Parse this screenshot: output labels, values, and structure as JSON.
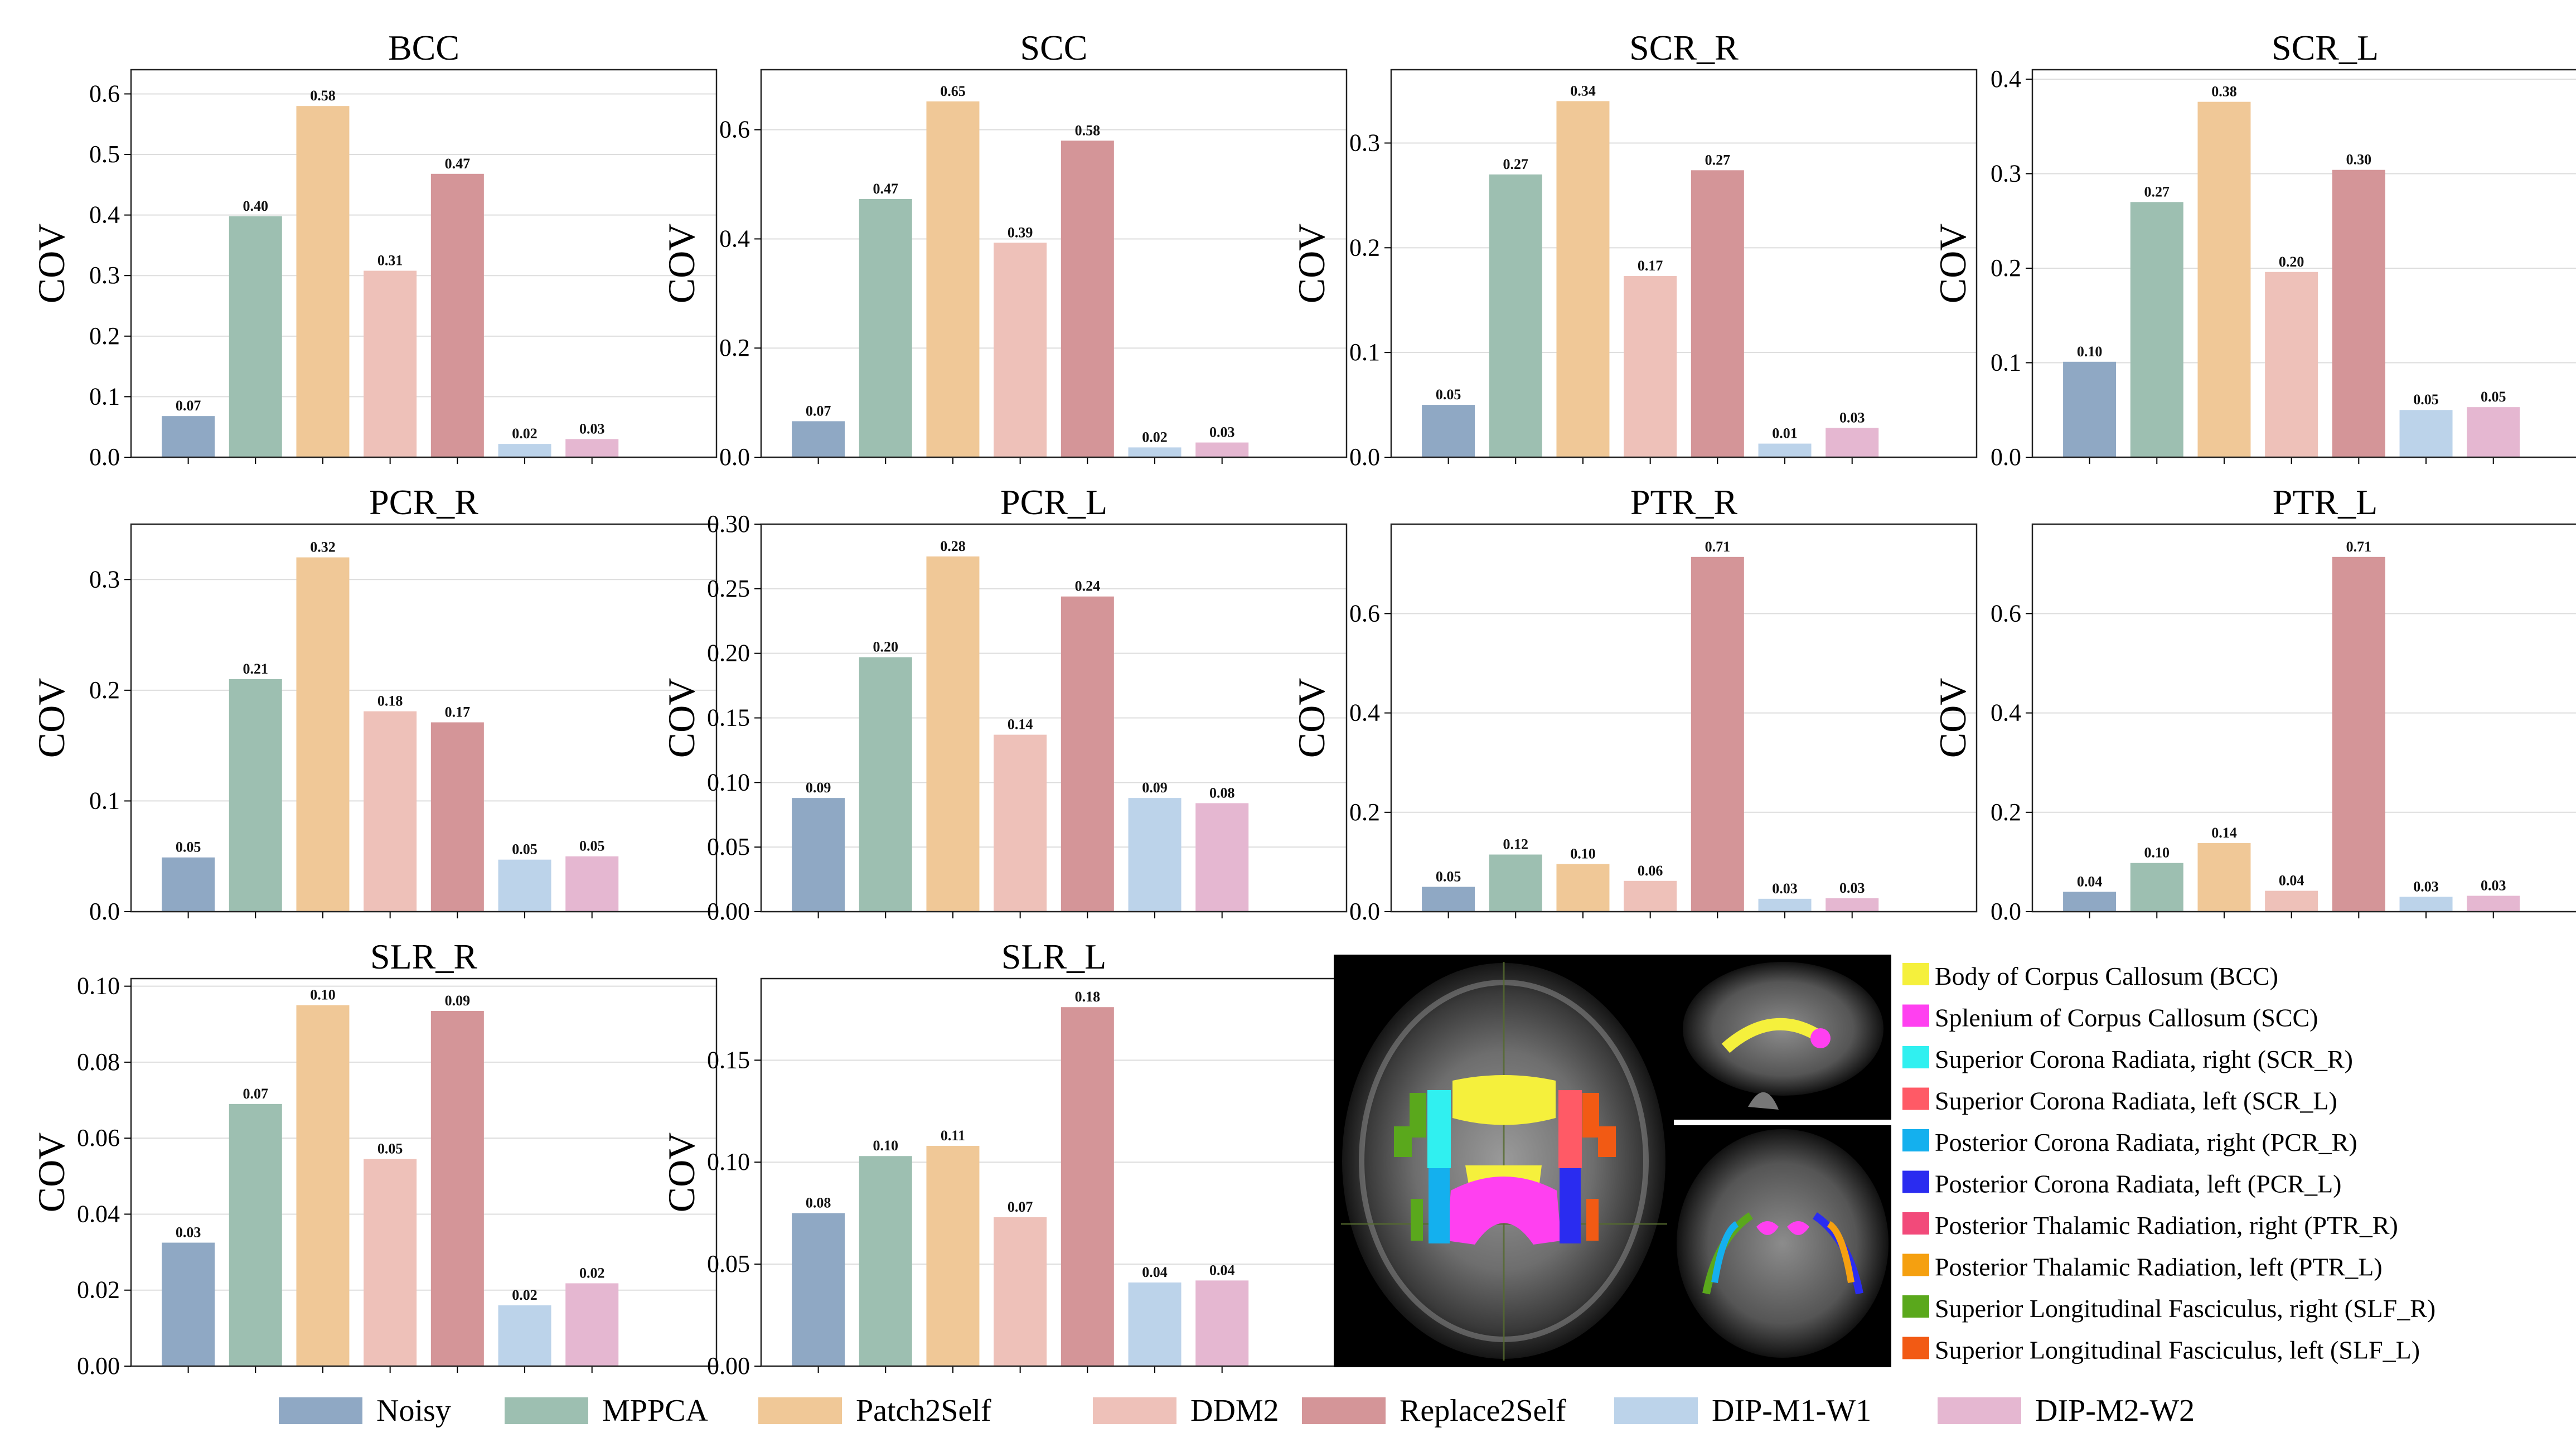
{
  "colors": {
    "Noisy": "#8fa8c4",
    "MPPCA": "#9dbfb1",
    "Patch2Self": "#f0c897",
    "DDM2": "#eec1b9",
    "Replace2Self": "#d49598",
    "DIP-M1-W1": "#bcd3ea",
    "DIP-M2-W2": "#e5b7d1"
  },
  "chart_data": [
    {
      "type": "bar",
      "title": "BCC",
      "ylabel": "COV",
      "ylim": [
        0,
        0.64
      ],
      "yticks": [
        0.0,
        0.1,
        0.2,
        0.3,
        0.4,
        0.5,
        0.6
      ],
      "ytick_labels": [
        "0.0",
        "0.1",
        "0.2",
        "0.3",
        "0.4",
        "0.5",
        "0.6"
      ],
      "categories": [
        "Noisy",
        "MPPCA",
        "Patch2Self",
        "DDM2",
        "Replace2Self",
        "DIP-M1-W1",
        "DIP-M2-W2"
      ],
      "values": [
        0.068,
        0.398,
        0.58,
        0.308,
        0.468,
        0.022,
        0.03
      ],
      "value_labels": [
        "0.07",
        "0.40",
        "0.58",
        "0.31",
        "0.47",
        "0.02",
        "0.03"
      ]
    },
    {
      "type": "bar",
      "title": "SCC",
      "ylabel": "COV",
      "ylim": [
        0,
        0.71
      ],
      "yticks": [
        0.0,
        0.2,
        0.4,
        0.6
      ],
      "ytick_labels": [
        "0.0",
        "0.2",
        "0.4",
        "0.6"
      ],
      "categories": [
        "Noisy",
        "MPPCA",
        "Patch2Self",
        "DDM2",
        "Replace2Self",
        "DIP-M1-W1",
        "DIP-M2-W2"
      ],
      "values": [
        0.066,
        0.473,
        0.652,
        0.393,
        0.58,
        0.018,
        0.027
      ],
      "value_labels": [
        "0.07",
        "0.47",
        "0.65",
        "0.39",
        "0.58",
        "0.02",
        "0.03"
      ]
    },
    {
      "type": "bar",
      "title": "SCR_R",
      "ylabel": "COV",
      "ylim": [
        0,
        0.37
      ],
      "yticks": [
        0.0,
        0.1,
        0.2,
        0.3
      ],
      "ytick_labels": [
        "0.0",
        "0.1",
        "0.2",
        "0.3"
      ],
      "categories": [
        "Noisy",
        "MPPCA",
        "Patch2Self",
        "DDM2",
        "Replace2Self",
        "DIP-M1-W1",
        "DIP-M2-W2"
      ],
      "values": [
        0.05,
        0.27,
        0.34,
        0.173,
        0.274,
        0.013,
        0.028
      ],
      "value_labels": [
        "0.05",
        "0.27",
        "0.34",
        "0.17",
        "0.27",
        "0.01",
        "0.03"
      ]
    },
    {
      "type": "bar",
      "title": "SCR_L",
      "ylabel": "COV",
      "ylim": [
        0,
        0.41
      ],
      "yticks": [
        0.0,
        0.1,
        0.2,
        0.3,
        0.4
      ],
      "ytick_labels": [
        "0.0",
        "0.1",
        "0.2",
        "0.3",
        "0.4"
      ],
      "categories": [
        "Noisy",
        "MPPCA",
        "Patch2Self",
        "DDM2",
        "Replace2Self",
        "DIP-M1-W1",
        "DIP-M2-W2"
      ],
      "values": [
        0.101,
        0.27,
        0.376,
        0.196,
        0.304,
        0.05,
        0.053
      ],
      "value_labels": [
        "0.10",
        "0.27",
        "0.38",
        "0.20",
        "0.30",
        "0.05",
        "0.05"
      ]
    },
    {
      "type": "bar",
      "title": "PCR_R",
      "ylabel": "COV",
      "ylim": [
        0,
        0.35
      ],
      "yticks": [
        0.0,
        0.1,
        0.2,
        0.3
      ],
      "ytick_labels": [
        "0.0",
        "0.1",
        "0.2",
        "0.3"
      ],
      "categories": [
        "Noisy",
        "MPPCA",
        "Patch2Self",
        "DDM2",
        "Replace2Self",
        "DIP-M1-W1",
        "DIP-M2-W2"
      ],
      "values": [
        0.049,
        0.21,
        0.32,
        0.181,
        0.171,
        0.047,
        0.05
      ],
      "value_labels": [
        "0.05",
        "0.21",
        "0.32",
        "0.18",
        "0.17",
        "0.05",
        "0.05"
      ]
    },
    {
      "type": "bar",
      "title": "PCR_L",
      "ylabel": "COV",
      "ylim": [
        0,
        0.3
      ],
      "yticks": [
        0.0,
        0.05,
        0.1,
        0.15,
        0.2,
        0.25,
        0.3
      ],
      "ytick_labels": [
        "0.00",
        "0.05",
        "0.10",
        "0.15",
        "0.20",
        "0.25",
        "0.30"
      ],
      "categories": [
        "Noisy",
        "MPPCA",
        "Patch2Self",
        "DDM2",
        "Replace2Self",
        "DIP-M1-W1",
        "DIP-M2-W2"
      ],
      "values": [
        0.088,
        0.197,
        0.275,
        0.137,
        0.244,
        0.088,
        0.084
      ],
      "value_labels": [
        "0.09",
        "0.20",
        "0.28",
        "0.14",
        "0.24",
        "0.09",
        "0.08"
      ]
    },
    {
      "type": "bar",
      "title": "PTR_R",
      "ylabel": "COV",
      "ylim": [
        0,
        0.78
      ],
      "yticks": [
        0.0,
        0.2,
        0.4,
        0.6
      ],
      "ytick_labels": [
        "0.0",
        "0.2",
        "0.4",
        "0.6"
      ],
      "categories": [
        "Noisy",
        "MPPCA",
        "Patch2Self",
        "DDM2",
        "Replace2Self",
        "DIP-M1-W1",
        "DIP-M2-W2"
      ],
      "values": [
        0.05,
        0.115,
        0.096,
        0.062,
        0.714,
        0.026,
        0.027
      ],
      "value_labels": [
        "0.05",
        "0.12",
        "0.10",
        "0.06",
        "0.71",
        "0.03",
        "0.03"
      ]
    },
    {
      "type": "bar",
      "title": "PTR_L",
      "ylabel": "COV",
      "ylim": [
        0,
        0.78
      ],
      "yticks": [
        0.0,
        0.2,
        0.4,
        0.6
      ],
      "ytick_labels": [
        "0.0",
        "0.2",
        "0.4",
        "0.6"
      ],
      "categories": [
        "Noisy",
        "MPPCA",
        "Patch2Self",
        "DDM2",
        "Replace2Self",
        "DIP-M1-W1",
        "DIP-M2-W2"
      ],
      "values": [
        0.04,
        0.098,
        0.138,
        0.042,
        0.714,
        0.03,
        0.032
      ],
      "value_labels": [
        "0.04",
        "0.10",
        "0.14",
        "0.04",
        "0.71",
        "0.03",
        "0.03"
      ]
    },
    {
      "type": "bar",
      "title": "SLR_R",
      "ylabel": "COV",
      "ylim": [
        0,
        0.102
      ],
      "yticks": [
        0.0,
        0.02,
        0.04,
        0.06,
        0.08,
        0.1
      ],
      "ytick_labels": [
        "0.00",
        "0.02",
        "0.04",
        "0.06",
        "0.08",
        "0.10"
      ],
      "categories": [
        "Noisy",
        "MPPCA",
        "Patch2Self",
        "DDM2",
        "Replace2Self",
        "DIP-M1-W1",
        "DIP-M2-W2"
      ],
      "values": [
        0.0325,
        0.069,
        0.095,
        0.0545,
        0.0935,
        0.016,
        0.0218
      ],
      "value_labels": [
        "0.03",
        "0.07",
        "0.10",
        "0.05",
        "0.09",
        "0.02",
        "0.02"
      ]
    },
    {
      "type": "bar",
      "title": "SLR_L",
      "ylabel": "COV",
      "ylim": [
        0,
        0.19
      ],
      "yticks": [
        0.0,
        0.05,
        0.1,
        0.15
      ],
      "ytick_labels": [
        "0.00",
        "0.05",
        "0.10",
        "0.15"
      ],
      "categories": [
        "Noisy",
        "MPPCA",
        "Patch2Self",
        "DDM2",
        "Replace2Self",
        "DIP-M1-W1",
        "DIP-M2-W2"
      ],
      "values": [
        0.075,
        0.103,
        0.108,
        0.073,
        0.176,
        0.041,
        0.042
      ],
      "value_labels": [
        "0.08",
        "0.10",
        "0.11",
        "0.07",
        "0.18",
        "0.04",
        "0.04"
      ]
    }
  ],
  "legend": {
    "items": [
      "Noisy",
      "MPPCA",
      "Patch2Self",
      "DDM2",
      "Replace2Self",
      "DIP-M1-W1",
      "DIP-M2-W2"
    ]
  },
  "region_legend": {
    "items": [
      {
        "label": "Body of Corpus Callosum (BCC)",
        "color": "#f5f03c"
      },
      {
        "label": "Splenium of Corpus Callosum (SCC)",
        "color": "#ff40f0"
      },
      {
        "label": "Superior Corona Radiata, right (SCR_R)",
        "color": "#30f0f0"
      },
      {
        "label": "Superior Corona Radiata, left  (SCR_L)",
        "color": "#ff5a66"
      },
      {
        "label": "Posterior Corona Radiata, right  (PCR_R)",
        "color": "#14b0ee"
      },
      {
        "label": "Posterior Corona Radiata, left (PCR_L)",
        "color": "#2a2cf0"
      },
      {
        "label": "Posterior Thalamic Radiation, right (PTR_R)",
        "color": "#f24a7a"
      },
      {
        "label": "Posterior Thalamic Radiation, left (PTR_L)",
        "color": "#f5a010"
      },
      {
        "label": "Superior Longitudinal Fasciculus, right (SLF_R)",
        "color": "#5aa81c"
      },
      {
        "label": "Superior Longitudinal Fasciculus, left (SLF_L)",
        "color": "#f25a14"
      }
    ]
  }
}
